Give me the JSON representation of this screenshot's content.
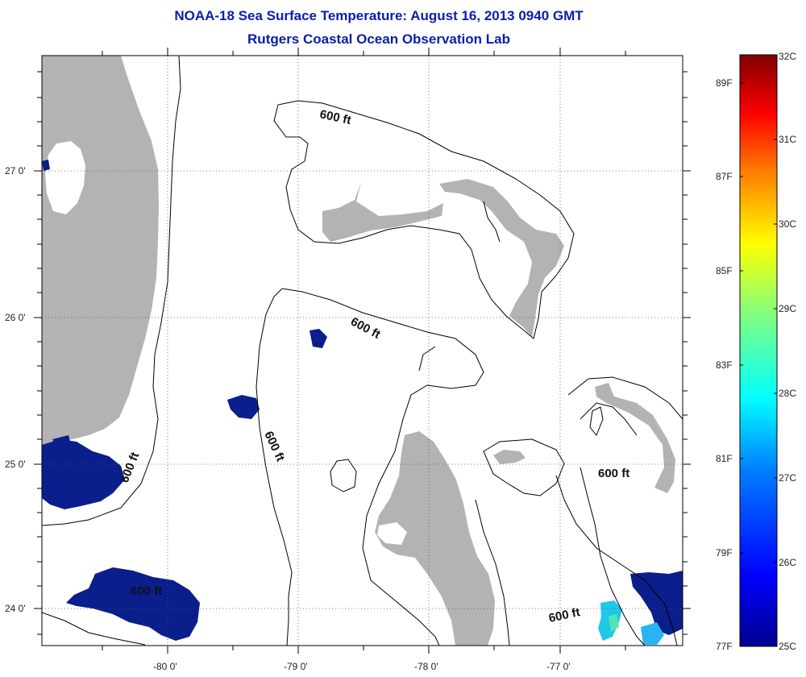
{
  "header": {
    "title": "NOAA-18 Sea Surface Temperature:  August 16, 2013 0940 GMT",
    "subtitle": "Rutgers Coastal Ocean Observation Lab"
  },
  "map": {
    "lat_ticks": [
      "27 0'",
      "26 0'",
      "25 0'",
      "24 0'"
    ],
    "lon_ticks": [
      "-80 0'",
      "-79 0'",
      "-78 0'",
      "-77 0'"
    ],
    "contour_labels": [
      "600 ft",
      "600 ft",
      "600 ft",
      "600 ft",
      "600 ft",
      "600 ft"
    ]
  },
  "colorbar": {
    "celsius_labels": [
      "32C",
      "31C",
      "30C",
      "29C",
      "28C",
      "27C",
      "26C",
      "25C"
    ],
    "fahrenheit_labels": [
      "89F",
      "87F",
      "85F",
      "83F",
      "81F",
      "79F",
      "77F"
    ],
    "colors": [
      "#00008f",
      "#0000ff",
      "#0080ff",
      "#00ffff",
      "#80ff80",
      "#ffff00",
      "#ff8000",
      "#ff0000",
      "#800000"
    ]
  },
  "colors": {
    "land": "#b3b3b3",
    "sst_cool": "#0a1e8c",
    "title": "#0b1ea8"
  }
}
